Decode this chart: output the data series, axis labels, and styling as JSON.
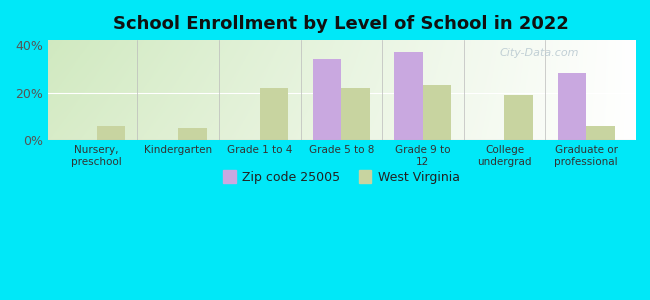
{
  "title": "School Enrollment by Level of School in 2022",
  "categories": [
    "Nursery,\npreschool",
    "Kindergarten",
    "Grade 1 to 4",
    "Grade 5 to 8",
    "Grade 9 to\n12",
    "College\nundergrad",
    "Graduate or\nprofessional"
  ],
  "zip_values": [
    0,
    0,
    0,
    34,
    37,
    0,
    28
  ],
  "wv_values": [
    6,
    5,
    22,
    22,
    23,
    19,
    6
  ],
  "zip_color": "#c9a8e0",
  "wv_color": "#c8d4a0",
  "ylim": [
    0,
    42
  ],
  "yticks": [
    0,
    20,
    40
  ],
  "ytick_labels": [
    "0%",
    "20%",
    "40%"
  ],
  "background_color": "#00e8f8",
  "legend_zip": "Zip code 25005",
  "legend_wv": "West Virginia",
  "bar_width": 0.35,
  "watermark": "City-Data.com"
}
